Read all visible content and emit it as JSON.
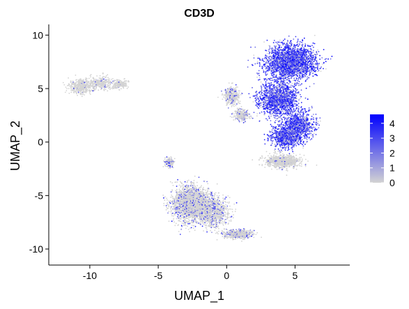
{
  "chart_data": {
    "type": "scatter",
    "title": "CD3D",
    "xlabel": "UMAP_1",
    "ylabel": "UMAP_2",
    "xlim": [
      -13,
      9
    ],
    "ylim": [
      -11.5,
      11
    ],
    "x_ticks": [
      -10,
      -5,
      0,
      5
    ],
    "y_ticks": [
      -10,
      -5,
      0,
      5,
      10
    ],
    "grid": false,
    "legend": {
      "position": "right",
      "type": "colorbar",
      "range": [
        0,
        4.6
      ],
      "ticks": [
        0,
        1,
        2,
        3,
        4
      ]
    },
    "colors": {
      "low": "#d3d3d3",
      "high": "#0000ff"
    },
    "clusters": [
      {
        "name": "top-left cluster",
        "expression": "low",
        "density": 900,
        "seed": 1,
        "components": [
          {
            "center": [
              -10.6,
              5.2
            ],
            "spread": [
              0.8,
              0.6
            ],
            "weight": 0.45
          },
          {
            "center": [
              -9.2,
              5.5
            ],
            "spread": [
              0.9,
              0.6
            ],
            "weight": 0.35
          },
          {
            "center": [
              -7.8,
              5.4
            ],
            "spread": [
              0.5,
              0.4
            ],
            "weight": 0.2
          }
        ]
      },
      {
        "name": "large upper-right cluster",
        "expression": "high",
        "density": 6000,
        "seed": 2,
        "components": [
          {
            "center": [
              4.7,
              7.5
            ],
            "spread": [
              1.6,
              1.4
            ],
            "weight": 0.45
          },
          {
            "center": [
              3.8,
              4.0
            ],
            "spread": [
              1.3,
              1.5
            ],
            "weight": 0.25
          },
          {
            "center": [
              5.3,
              1.5
            ],
            "spread": [
              1.0,
              1.2
            ],
            "weight": 0.15
          },
          {
            "center": [
              4.3,
              0.5
            ],
            "spread": [
              0.9,
              0.9
            ],
            "weight": 0.15
          }
        ]
      },
      {
        "name": "upper-right lower lobe",
        "expression": "low",
        "density": 900,
        "seed": 3,
        "components": [
          {
            "center": [
              4.1,
              -1.8
            ],
            "spread": [
              1.1,
              0.55
            ],
            "weight": 1.0
          }
        ]
      },
      {
        "name": "middle left-of-center cluster",
        "expression": "mid",
        "density": 700,
        "seed": 4,
        "components": [
          {
            "center": [
              0.4,
              4.3
            ],
            "spread": [
              0.5,
              0.7
            ],
            "weight": 0.6
          },
          {
            "center": [
              1.1,
              2.5
            ],
            "spread": [
              0.5,
              0.5
            ],
            "weight": 0.4
          }
        ]
      },
      {
        "name": "bottom cluster",
        "expression": "lowmid",
        "density": 4200,
        "seed": 5,
        "components": [
          {
            "center": [
              -2.6,
              -5.8
            ],
            "spread": [
              1.2,
              1.5
            ],
            "weight": 0.55
          },
          {
            "center": [
              -1.0,
              -6.5
            ],
            "spread": [
              1.0,
              1.3
            ],
            "weight": 0.25
          },
          {
            "center": [
              -4.2,
              -1.9
            ],
            "spread": [
              0.3,
              0.4
            ],
            "weight": 0.05
          },
          {
            "center": [
              0.8,
              -8.6
            ],
            "spread": [
              0.9,
              0.35
            ],
            "weight": 0.15
          }
        ]
      }
    ]
  }
}
